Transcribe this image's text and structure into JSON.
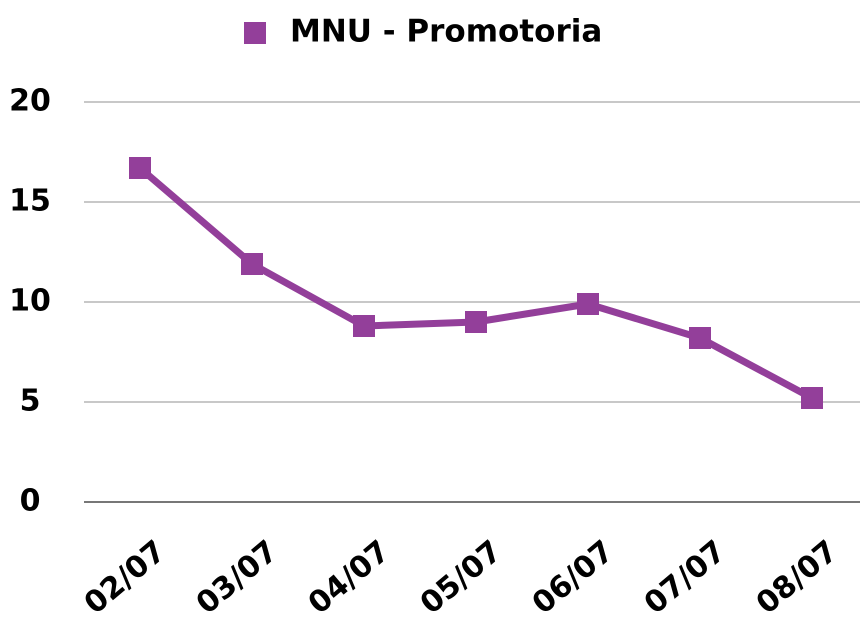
{
  "chart_data": {
    "type": "line",
    "categories": [
      "02/07",
      "03/07",
      "04/07",
      "05/07",
      "06/07",
      "07/07",
      "08/07"
    ],
    "series": [
      {
        "name": "MNU - Promotoria",
        "color": "#933f9a",
        "values": [
          16.7,
          11.9,
          8.8,
          9.0,
          9.9,
          8.2,
          5.2
        ]
      }
    ],
    "ylim": [
      0,
      20
    ],
    "yticks": [
      0,
      5,
      10,
      15,
      20
    ],
    "grid": true,
    "legend": "top"
  }
}
